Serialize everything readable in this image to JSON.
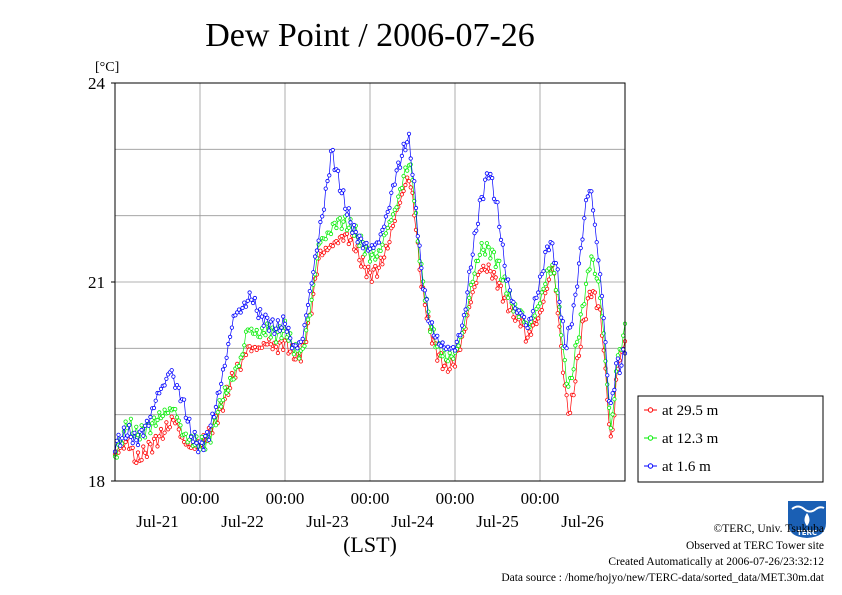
{
  "chart_data": {
    "type": "line",
    "title": "Dew Point / 2006-07-26",
    "unit_label": "[°C]",
    "xlabel": "(LST)",
    "ylim": [
      18,
      24
    ],
    "yticks": [
      "18",
      "21",
      "24"
    ],
    "ygrid_values": [
      19,
      20,
      21,
      22,
      23
    ],
    "grid": true,
    "legend_position": "outside-right",
    "x_day_range": [
      0,
      6
    ],
    "xtick_time_labels": [
      "00:00",
      "00:00",
      "00:00",
      "00:00",
      "00:00"
    ],
    "xtick_time_positions": [
      1,
      2,
      3,
      4,
      5
    ],
    "xtick_date_labels": [
      "Jul-21",
      "Jul-22",
      "Jul-23",
      "Jul-24",
      "Jul-25",
      "Jul-26"
    ],
    "xtick_date_positions": [
      0.5,
      1.5,
      2.5,
      3.5,
      4.5,
      5.5
    ],
    "x_start": "2006-07-20 12:00",
    "sampling_interval_hours": 0.5,
    "series": [
      {
        "name": "at 29.5 m",
        "color": "#ff0000",
        "anchors": [
          [
            0,
            18.4
          ],
          [
            0.15,
            18.6
          ],
          [
            0.25,
            18.3
          ],
          [
            0.4,
            18.5
          ],
          [
            0.55,
            18.7
          ],
          [
            0.7,
            18.95
          ],
          [
            0.8,
            18.6
          ],
          [
            0.9,
            18.5
          ],
          [
            1.0,
            18.55
          ],
          [
            1.1,
            18.7
          ],
          [
            1.25,
            19.1
          ],
          [
            1.4,
            19.6
          ],
          [
            1.5,
            19.8
          ],
          [
            1.55,
            20.0
          ],
          [
            1.7,
            20.0
          ],
          [
            1.8,
            20.1
          ],
          [
            1.9,
            20.0
          ],
          [
            2.0,
            20.1
          ],
          [
            2.1,
            19.9
          ],
          [
            2.2,
            19.9
          ],
          [
            2.3,
            20.5
          ],
          [
            2.4,
            21.4
          ],
          [
            2.5,
            21.5
          ],
          [
            2.6,
            21.6
          ],
          [
            2.7,
            21.7
          ],
          [
            2.8,
            21.6
          ],
          [
            2.9,
            21.3
          ],
          [
            3.0,
            21.1
          ],
          [
            3.1,
            21.2
          ],
          [
            3.2,
            21.5
          ],
          [
            3.3,
            22.0
          ],
          [
            3.4,
            22.4
          ],
          [
            3.45,
            22.6
          ],
          [
            3.5,
            22.3
          ],
          [
            3.55,
            21.7
          ],
          [
            3.6,
            21.0
          ],
          [
            3.7,
            20.3
          ],
          [
            3.8,
            19.9
          ],
          [
            3.9,
            19.7
          ],
          [
            4.0,
            19.8
          ],
          [
            4.1,
            20.2
          ],
          [
            4.2,
            20.8
          ],
          [
            4.3,
            21.2
          ],
          [
            4.4,
            21.2
          ],
          [
            4.5,
            21.0
          ],
          [
            4.6,
            20.7
          ],
          [
            4.7,
            20.5
          ],
          [
            4.8,
            20.4
          ],
          [
            4.85,
            20.1
          ],
          [
            4.9,
            20.3
          ],
          [
            5.0,
            20.5
          ],
          [
            5.1,
            21.0
          ],
          [
            5.15,
            21.3
          ],
          [
            5.2,
            20.7
          ],
          [
            5.25,
            20.0
          ],
          [
            5.3,
            19.3
          ],
          [
            5.35,
            19.0
          ],
          [
            5.4,
            19.4
          ],
          [
            5.5,
            20.3
          ],
          [
            5.6,
            20.9
          ],
          [
            5.7,
            20.6
          ],
          [
            5.75,
            20.0
          ],
          [
            5.8,
            19.1
          ],
          [
            5.83,
            18.6
          ],
          [
            5.87,
            18.9
          ],
          [
            5.9,
            19.6
          ],
          [
            5.95,
            19.9
          ],
          [
            6.0,
            20.1
          ]
        ]
      },
      {
        "name": "at 12.3 m",
        "color": "#00ee00",
        "anchors": [
          [
            0,
            18.35
          ],
          [
            0.15,
            18.9
          ],
          [
            0.25,
            18.7
          ],
          [
            0.4,
            18.8
          ],
          [
            0.55,
            19.0
          ],
          [
            0.7,
            19.1
          ],
          [
            0.8,
            18.7
          ],
          [
            0.9,
            18.6
          ],
          [
            1.0,
            18.55
          ],
          [
            1.1,
            18.6
          ],
          [
            1.25,
            19.2
          ],
          [
            1.4,
            19.6
          ],
          [
            1.5,
            19.9
          ],
          [
            1.55,
            20.3
          ],
          [
            1.7,
            20.2
          ],
          [
            1.8,
            20.3
          ],
          [
            1.9,
            20.2
          ],
          [
            2.0,
            20.3
          ],
          [
            2.1,
            20.0
          ],
          [
            2.2,
            19.9
          ],
          [
            2.3,
            20.6
          ],
          [
            2.4,
            21.6
          ],
          [
            2.5,
            21.7
          ],
          [
            2.6,
            21.9
          ],
          [
            2.7,
            21.9
          ],
          [
            2.8,
            21.8
          ],
          [
            2.9,
            21.6
          ],
          [
            3.0,
            21.4
          ],
          [
            3.1,
            21.4
          ],
          [
            3.2,
            21.8
          ],
          [
            3.3,
            22.1
          ],
          [
            3.4,
            22.6
          ],
          [
            3.45,
            22.8
          ],
          [
            3.5,
            22.6
          ],
          [
            3.55,
            21.8
          ],
          [
            3.6,
            21.2
          ],
          [
            3.7,
            20.4
          ],
          [
            3.8,
            20.0
          ],
          [
            3.9,
            19.85
          ],
          [
            4.0,
            19.9
          ],
          [
            4.1,
            20.3
          ],
          [
            4.2,
            21.0
          ],
          [
            4.3,
            21.5
          ],
          [
            4.4,
            21.5
          ],
          [
            4.5,
            21.3
          ],
          [
            4.6,
            20.9
          ],
          [
            4.7,
            20.6
          ],
          [
            4.8,
            20.5
          ],
          [
            4.85,
            20.3
          ],
          [
            4.9,
            20.4
          ],
          [
            5.0,
            20.7
          ],
          [
            5.1,
            21.2
          ],
          [
            5.15,
            21.2
          ],
          [
            5.2,
            20.9
          ],
          [
            5.25,
            20.3
          ],
          [
            5.3,
            19.6
          ],
          [
            5.35,
            19.4
          ],
          [
            5.4,
            19.8
          ],
          [
            5.5,
            20.6
          ],
          [
            5.6,
            21.4
          ],
          [
            5.7,
            20.9
          ],
          [
            5.75,
            20.2
          ],
          [
            5.8,
            19.3
          ],
          [
            5.83,
            18.8
          ],
          [
            5.87,
            19.1
          ],
          [
            5.9,
            19.8
          ],
          [
            5.95,
            20.0
          ],
          [
            6.0,
            20.3
          ]
        ]
      },
      {
        "name": "at 1.6 m",
        "color": "#0000ff",
        "anchors": [
          [
            0,
            18.55
          ],
          [
            0.15,
            18.75
          ],
          [
            0.25,
            18.6
          ],
          [
            0.4,
            18.9
          ],
          [
            0.5,
            19.3
          ],
          [
            0.6,
            19.5
          ],
          [
            0.65,
            19.7
          ],
          [
            0.7,
            19.5
          ],
          [
            0.8,
            19.2
          ],
          [
            0.9,
            18.7
          ],
          [
            1.0,
            18.5
          ],
          [
            1.1,
            18.7
          ],
          [
            1.2,
            19.2
          ],
          [
            1.3,
            19.8
          ],
          [
            1.4,
            20.5
          ],
          [
            1.5,
            20.6
          ],
          [
            1.6,
            20.8
          ],
          [
            1.7,
            20.5
          ],
          [
            1.8,
            20.4
          ],
          [
            1.9,
            20.3
          ],
          [
            2.0,
            20.4
          ],
          [
            2.1,
            20.0
          ],
          [
            2.2,
            20.1
          ],
          [
            2.3,
            20.9
          ],
          [
            2.4,
            21.7
          ],
          [
            2.5,
            22.5
          ],
          [
            2.55,
            23.0
          ],
          [
            2.6,
            22.7
          ],
          [
            2.7,
            22.2
          ],
          [
            2.8,
            21.8
          ],
          [
            2.9,
            21.6
          ],
          [
            3.0,
            21.5
          ],
          [
            3.1,
            21.6
          ],
          [
            3.2,
            22.0
          ],
          [
            3.3,
            22.6
          ],
          [
            3.4,
            23.0
          ],
          [
            3.45,
            23.2
          ],
          [
            3.5,
            22.7
          ],
          [
            3.55,
            22.0
          ],
          [
            3.6,
            21.2
          ],
          [
            3.7,
            20.4
          ],
          [
            3.8,
            20.1
          ],
          [
            3.9,
            20.0
          ],
          [
            4.0,
            20.0
          ],
          [
            4.1,
            20.4
          ],
          [
            4.2,
            21.4
          ],
          [
            4.3,
            22.2
          ],
          [
            4.4,
            22.7
          ],
          [
            4.5,
            22.1
          ],
          [
            4.6,
            21.1
          ],
          [
            4.7,
            20.6
          ],
          [
            4.8,
            20.5
          ],
          [
            4.85,
            20.3
          ],
          [
            4.9,
            20.5
          ],
          [
            5.0,
            21.0
          ],
          [
            5.1,
            21.6
          ],
          [
            5.15,
            21.5
          ],
          [
            5.2,
            21.2
          ],
          [
            5.25,
            20.5
          ],
          [
            5.3,
            20.0
          ],
          [
            5.4,
            20.6
          ],
          [
            5.5,
            21.7
          ],
          [
            5.55,
            22.3
          ],
          [
            5.6,
            22.4
          ],
          [
            5.7,
            21.2
          ],
          [
            5.75,
            20.5
          ],
          [
            5.8,
            19.4
          ],
          [
            5.83,
            19.1
          ],
          [
            5.87,
            19.4
          ],
          [
            5.9,
            19.8
          ],
          [
            5.95,
            19.7
          ],
          [
            6.0,
            20.0
          ]
        ]
      }
    ]
  },
  "footer": {
    "copyright": "©TERC, Univ. Tsukuba",
    "observed": "Observed at TERC Tower site",
    "created": "Created Automatically at 2006-07-26/23:32:12",
    "source": "Data source : /home/hojyo/new/TERC-data/sorted_data/MET.30m.dat",
    "logo_text": "TERC"
  }
}
